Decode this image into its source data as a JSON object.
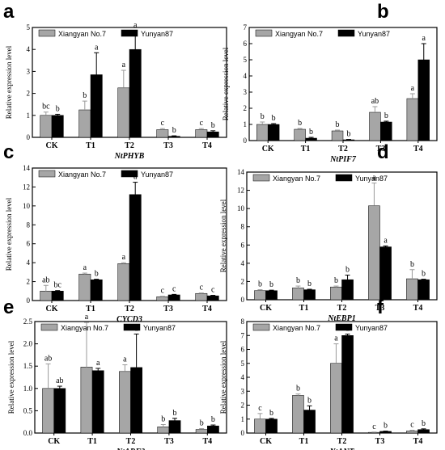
{
  "legend": {
    "series": [
      "Xiangyan No.7",
      "Yunyan87"
    ]
  },
  "colors": {
    "Xiangyan No.7": "#a6a6a6",
    "Yunyan87": "#000000"
  },
  "ylabel": "Relative expression level",
  "chart_data": [
    {
      "type": "bar",
      "panel": "a",
      "xlabel": "NtPHYB",
      "xlabel_italic": true,
      "categories": [
        "CK",
        "T1",
        "T2",
        "T3",
        "T4"
      ],
      "ylim": [
        0,
        5
      ],
      "yticks": [
        0,
        1,
        2,
        3,
        4,
        5
      ],
      "series": [
        {
          "name": "Xiangyan No.7",
          "values": [
            1.0,
            1.25,
            2.25,
            0.35,
            0.35
          ],
          "errors": [
            0.15,
            0.4,
            0.8,
            0.05,
            0.05
          ],
          "labels": [
            "bc",
            "b",
            "a",
            "c",
            "c"
          ]
        },
        {
          "name": "Yunyan87",
          "values": [
            1.0,
            2.85,
            4.0,
            0.05,
            0.25
          ],
          "errors": [
            0.05,
            1.0,
            0.85,
            0.02,
            0.05
          ],
          "labels": [
            "b",
            "a",
            "a",
            "b",
            "b"
          ]
        }
      ]
    },
    {
      "type": "bar",
      "panel": "b",
      "xlabel": "NtPIF7",
      "xlabel_italic": true,
      "categories": [
        "CK",
        "T1",
        "T2",
        "T3",
        "T4"
      ],
      "ylim": [
        0,
        7
      ],
      "yticks": [
        0,
        1,
        2,
        3,
        4,
        5,
        6,
        7
      ],
      "series": [
        {
          "name": "Xiangyan No.7",
          "values": [
            1.0,
            0.7,
            0.6,
            1.75,
            2.6
          ],
          "errors": [
            0.15,
            0.05,
            0.05,
            0.35,
            0.3
          ],
          "labels": [
            "b",
            "b",
            "b",
            "ab",
            "a"
          ]
        },
        {
          "name": "Yunyan87",
          "values": [
            1.0,
            0.15,
            0.05,
            1.15,
            5.0
          ],
          "errors": [
            0.05,
            0.05,
            0.02,
            0.05,
            1.0
          ],
          "labels": [
            "b",
            "b",
            "b",
            "b",
            "a"
          ]
        }
      ]
    },
    {
      "type": "bar",
      "panel": "c",
      "xlabel": "CYCD3",
      "xlabel_italic": true,
      "categories": [
        "CK",
        "T1",
        "T2",
        "T3",
        "T4"
      ],
      "ylim": [
        0,
        14
      ],
      "yticks": [
        0,
        2,
        4,
        6,
        8,
        10,
        12,
        14
      ],
      "series": [
        {
          "name": "Xiangyan No.7",
          "values": [
            1.0,
            2.8,
            3.9,
            0.4,
            0.75
          ],
          "errors": [
            0.6,
            0.1,
            0.1,
            0.05,
            0.05
          ],
          "labels": [
            "ab",
            "a",
            "a",
            "c",
            "c"
          ]
        },
        {
          "name": "Yunyan87",
          "values": [
            1.0,
            2.2,
            11.2,
            0.6,
            0.5
          ],
          "errors": [
            0.05,
            0.05,
            1.3,
            0.05,
            0.05
          ],
          "labels": [
            "bc",
            "b",
            "a",
            "c",
            "c"
          ]
        }
      ]
    },
    {
      "type": "bar",
      "panel": "d",
      "xlabel": "NtEBP1",
      "xlabel_italic": true,
      "categories": [
        "CK",
        "T1",
        "T2",
        "T3",
        "T4"
      ],
      "ylim": [
        0,
        14
      ],
      "yticks": [
        0,
        2,
        4,
        6,
        8,
        10,
        12,
        14
      ],
      "series": [
        {
          "name": "Xiangyan No.7",
          "values": [
            1.0,
            1.3,
            1.4,
            10.3,
            2.3
          ],
          "errors": [
            0.1,
            0.2,
            0.1,
            2.5,
            1.0
          ],
          "labels": [
            "b",
            "b",
            "b",
            "a",
            "b"
          ]
        },
        {
          "name": "Yunyan87",
          "values": [
            1.0,
            1.1,
            2.2,
            5.8,
            2.2
          ],
          "errors": [
            0.05,
            0.05,
            0.5,
            0.1,
            0.05
          ],
          "labels": [
            "b",
            "b",
            "b",
            "a",
            "b"
          ]
        }
      ]
    },
    {
      "type": "bar",
      "panel": "e",
      "xlabel": "NtARF2",
      "xlabel_italic": true,
      "categories": [
        "CK",
        "T1",
        "T2",
        "T3",
        "T4"
      ],
      "ylim": [
        0,
        2.5
      ],
      "yticks": [
        0.0,
        0.5,
        1.0,
        1.5,
        2.0,
        2.5
      ],
      "series": [
        {
          "name": "Xiangyan No.7",
          "values": [
            1.0,
            1.48,
            1.38,
            0.14,
            0.08
          ],
          "errors": [
            0.55,
            1.0,
            0.15,
            0.05,
            0.02
          ],
          "labels": [
            "ab",
            "a",
            "a",
            "b",
            "b"
          ]
        },
        {
          "name": "Yunyan87",
          "values": [
            1.0,
            1.4,
            1.47,
            0.28,
            0.16
          ],
          "errors": [
            0.05,
            0.05,
            0.75,
            0.05,
            0.02
          ],
          "labels": [
            "ab",
            "a",
            "a",
            "b",
            "b"
          ]
        }
      ]
    },
    {
      "type": "bar",
      "panel": "f",
      "xlabel": "NtANT",
      "xlabel_italic": false,
      "categories": [
        "CK",
        "T1",
        "T2",
        "T3",
        "T4"
      ],
      "ylim": [
        0,
        8
      ],
      "yticks": [
        0,
        1,
        2,
        3,
        4,
        5,
        6,
        7,
        8
      ],
      "series": [
        {
          "name": "Xiangyan No.7",
          "values": [
            1.0,
            2.7,
            5.0,
            0.05,
            0.15
          ],
          "errors": [
            0.4,
            0.1,
            1.4,
            0.02,
            0.05
          ],
          "labels": [
            "c",
            "b",
            "a",
            "c",
            "c"
          ]
        },
        {
          "name": "Yunyan87",
          "values": [
            1.0,
            1.65,
            7.0,
            0.12,
            0.25
          ],
          "errors": [
            0.05,
            0.3,
            0.1,
            0.02,
            0.05
          ],
          "labels": [
            "b",
            "b",
            "a",
            "b",
            "b"
          ]
        }
      ]
    }
  ]
}
